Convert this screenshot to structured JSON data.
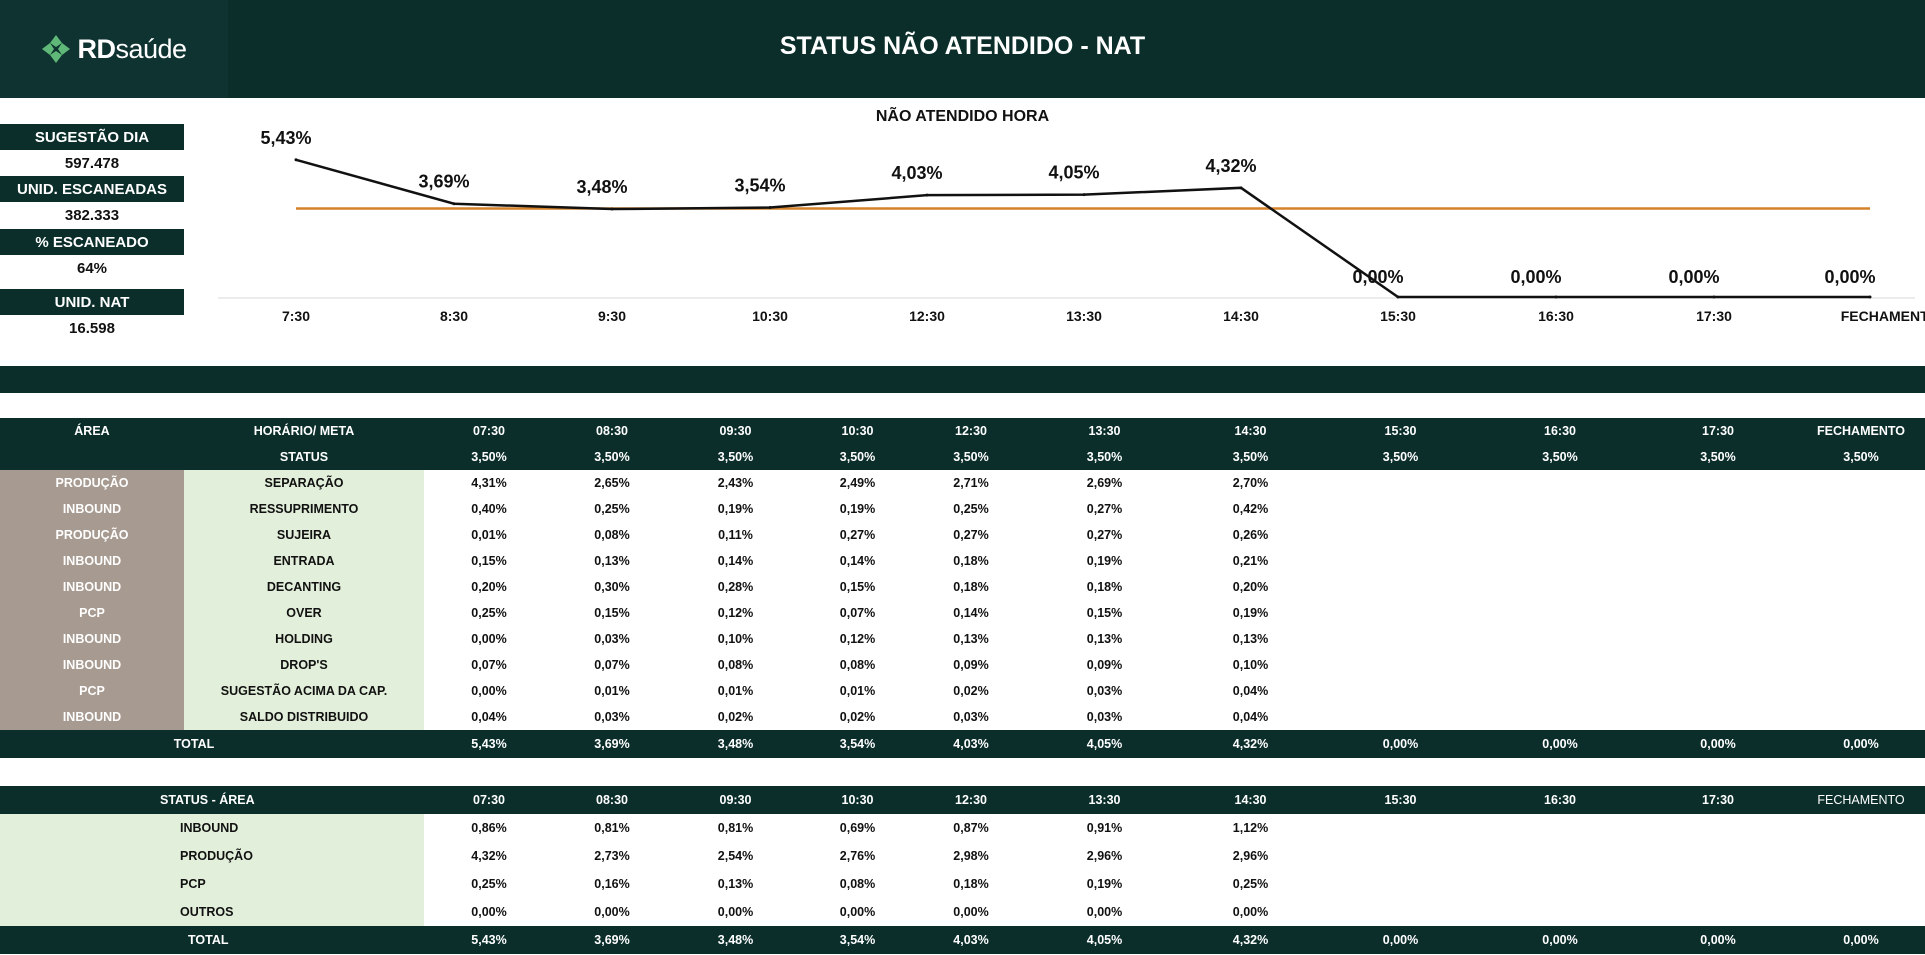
{
  "header": {
    "logo_primary": "RD",
    "logo_secondary": "saúde",
    "title": "STATUS NÃO ATENDIDO - NAT"
  },
  "kpis": [
    {
      "label": "SUGESTÃO DIA",
      "value": "597.478"
    },
    {
      "label": "UNID. ESCANEADAS",
      "value": "382.333"
    },
    {
      "label": "% ESCANEADO",
      "value": "64%"
    },
    {
      "label": "UNID. NAT",
      "value": "16.598"
    }
  ],
  "colors": {
    "header_bg": "#0b2e2b",
    "area_bg": "#a79a90",
    "status_bg": "#e2efda",
    "line": "#111111",
    "meta_line": "#d4822a"
  },
  "chart_data": {
    "type": "line",
    "title": "NÃO ATENDIDO HORA",
    "categories": [
      "7:30",
      "8:30",
      "9:30",
      "10:30",
      "12:30",
      "13:30",
      "14:30",
      "15:30",
      "16:30",
      "17:30",
      "FECHAMENTO"
    ],
    "series": [
      {
        "values": [
          5.43,
          3.69,
          3.48,
          3.54,
          4.03,
          4.05,
          4.32,
          0.0,
          0.0,
          0.0,
          0.0
        ]
      },
      {
        "values": [
          3.5,
          3.5,
          3.5,
          3.5,
          3.5,
          3.5,
          3.5,
          3.5,
          3.5,
          3.5,
          3.5
        ]
      }
    ],
    "data_labels": [
      "5,43%",
      "3,69%",
      "3,48%",
      "3,54%",
      "4,03%",
      "4,05%",
      "4,32%",
      "0,00%",
      "0,00%",
      "0,00%",
      "0,00%"
    ],
    "ylim": [
      0,
      5.5
    ],
    "grid": false,
    "legend": "none"
  },
  "table1": {
    "header1": [
      "ÁREA",
      "HORÁRIO/ META",
      "07:30",
      "08:30",
      "09:30",
      "10:30",
      "12:30",
      "13:30",
      "14:30",
      "15:30",
      "16:30",
      "17:30",
      "FECHAMENTO"
    ],
    "header2": [
      "",
      "STATUS",
      "3,50%",
      "3,50%",
      "3,50%",
      "3,50%",
      "3,50%",
      "3,50%",
      "3,50%",
      "3,50%",
      "3,50%",
      "3,50%",
      "3,50%"
    ],
    "rows": [
      {
        "area": "PRODUÇÃO",
        "status": "SEPARAÇÃO",
        "values": [
          "4,31%",
          "2,65%",
          "2,43%",
          "2,49%",
          "2,71%",
          "2,69%",
          "2,70%",
          "",
          "",
          "",
          ""
        ]
      },
      {
        "area": "INBOUND",
        "status": "RESSUPRIMENTO",
        "values": [
          "0,40%",
          "0,25%",
          "0,19%",
          "0,19%",
          "0,25%",
          "0,27%",
          "0,42%",
          "",
          "",
          "",
          ""
        ]
      },
      {
        "area": "PRODUÇÃO",
        "status": "SUJEIRA",
        "values": [
          "0,01%",
          "0,08%",
          "0,11%",
          "0,27%",
          "0,27%",
          "0,27%",
          "0,26%",
          "",
          "",
          "",
          ""
        ]
      },
      {
        "area": "INBOUND",
        "status": "ENTRADA",
        "values": [
          "0,15%",
          "0,13%",
          "0,14%",
          "0,14%",
          "0,18%",
          "0,19%",
          "0,21%",
          "",
          "",
          "",
          ""
        ]
      },
      {
        "area": "INBOUND",
        "status": "DECANTING",
        "values": [
          "0,20%",
          "0,30%",
          "0,28%",
          "0,15%",
          "0,18%",
          "0,18%",
          "0,20%",
          "",
          "",
          "",
          ""
        ]
      },
      {
        "area": "PCP",
        "status": "OVER",
        "values": [
          "0,25%",
          "0,15%",
          "0,12%",
          "0,07%",
          "0,14%",
          "0,15%",
          "0,19%",
          "",
          "",
          "",
          ""
        ]
      },
      {
        "area": "INBOUND",
        "status": "HOLDING",
        "values": [
          "0,00%",
          "0,03%",
          "0,10%",
          "0,12%",
          "0,13%",
          "0,13%",
          "0,13%",
          "",
          "",
          "",
          ""
        ]
      },
      {
        "area": "INBOUND",
        "status": "DROP'S",
        "values": [
          "0,07%",
          "0,07%",
          "0,08%",
          "0,08%",
          "0,09%",
          "0,09%",
          "0,10%",
          "",
          "",
          "",
          ""
        ]
      },
      {
        "area": "PCP",
        "status": "SUGESTÃO ACIMA DA CAP.",
        "values": [
          "0,00%",
          "0,01%",
          "0,01%",
          "0,01%",
          "0,02%",
          "0,03%",
          "0,04%",
          "",
          "",
          "",
          ""
        ]
      },
      {
        "area": "INBOUND",
        "status": "SALDO DISTRIBUIDO",
        "values": [
          "0,04%",
          "0,03%",
          "0,02%",
          "0,02%",
          "0,03%",
          "0,03%",
          "0,04%",
          "",
          "",
          "",
          ""
        ]
      }
    ],
    "total": {
      "label": "TOTAL",
      "values": [
        "5,43%",
        "3,69%",
        "3,48%",
        "3,54%",
        "4,03%",
        "4,05%",
        "4,32%",
        "0,00%",
        "0,00%",
        "0,00%",
        "0,00%"
      ]
    }
  },
  "table2": {
    "header": [
      "STATUS - ÁREA",
      "07:30",
      "08:30",
      "09:30",
      "10:30",
      "12:30",
      "13:30",
      "14:30",
      "15:30",
      "16:30",
      "17:30",
      "FECHAMENTO"
    ],
    "rows": [
      {
        "label": "INBOUND",
        "values": [
          "0,86%",
          "0,81%",
          "0,81%",
          "0,69%",
          "0,87%",
          "0,91%",
          "1,12%",
          "",
          "",
          "",
          ""
        ]
      },
      {
        "label": "PRODUÇÃO",
        "values": [
          "4,32%",
          "2,73%",
          "2,54%",
          "2,76%",
          "2,98%",
          "2,96%",
          "2,96%",
          "",
          "",
          "",
          ""
        ]
      },
      {
        "label": "PCP",
        "values": [
          "0,25%",
          "0,16%",
          "0,13%",
          "0,08%",
          "0,18%",
          "0,19%",
          "0,25%",
          "",
          "",
          "",
          ""
        ]
      },
      {
        "label": "OUTROS",
        "values": [
          "0,00%",
          "0,00%",
          "0,00%",
          "0,00%",
          "0,00%",
          "0,00%",
          "0,00%",
          "",
          "",
          "",
          ""
        ]
      }
    ],
    "total": {
      "label": "TOTAL",
      "values": [
        "5,43%",
        "3,69%",
        "3,48%",
        "3,54%",
        "4,03%",
        "4,05%",
        "4,32%",
        "0,00%",
        "0,00%",
        "0,00%",
        "0,00%"
      ]
    }
  }
}
